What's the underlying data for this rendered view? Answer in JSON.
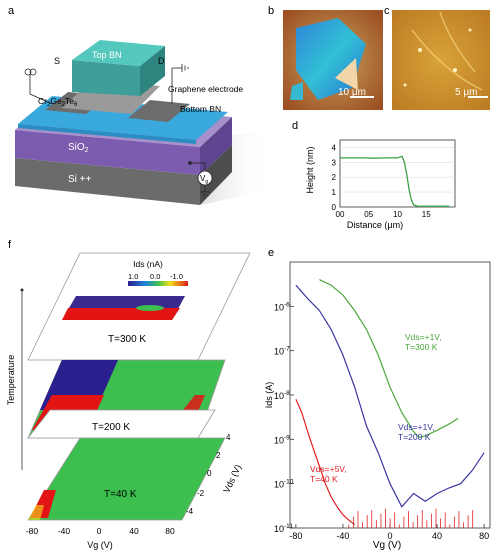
{
  "panels": {
    "a": {
      "label": "a",
      "source": "S",
      "drain": "D",
      "top_bn": "Top BN",
      "crgete_parts": [
        "Cr",
        "2",
        "Ge",
        "2",
        "Te",
        "6"
      ],
      "graphene": "Graphene electrode",
      "bottom_bn": "Bottom BN",
      "sio2_parts": [
        "SiO",
        "2"
      ],
      "si": "Si ++",
      "vg_parts": [
        "V",
        "g"
      ]
    },
    "b": {
      "label": "b",
      "scalebar": "10 μm"
    },
    "c": {
      "label": "c",
      "scalebar": "5 μm"
    },
    "d": {
      "label": "d"
    },
    "e": {
      "label": "e"
    },
    "f": {
      "label": "f",
      "y_axis": "Temperature",
      "colorbar_title": "Ids (nA)",
      "colorbar_ticks": [
        "1.0",
        "0.0",
        "-1.0"
      ],
      "temps": [
        "T=300 K",
        "T=200 K",
        "T=40 K"
      ],
      "vds_label": "Vds (V)",
      "vds_ticks": [
        "4",
        "2",
        "0",
        "-2",
        "-4"
      ],
      "vg_label": "Vg (V)",
      "vg_ticks": [
        "-80",
        "-40",
        "0",
        "40",
        "80"
      ]
    }
  },
  "chart_data": [
    {
      "panel": "d",
      "type": "line",
      "xlabel": "Distance (μm)",
      "ylabel": "Height (nm)",
      "xlim": [
        0,
        20
      ],
      "ylim": [
        0,
        4.5
      ],
      "xticks": [
        "00",
        "05",
        "10",
        "15"
      ],
      "yticks": [
        "0",
        "1",
        "2",
        "3",
        "4"
      ],
      "grid": true,
      "color": "#3aa043",
      "x": [
        0,
        2,
        4,
        6,
        8,
        10,
        10.8,
        11.2,
        11.6,
        12.0,
        12.4,
        12.8,
        13.5,
        15,
        17,
        19
      ],
      "y": [
        3.3,
        3.3,
        3.3,
        3.28,
        3.3,
        3.3,
        3.4,
        3.0,
        2.2,
        1.2,
        0.5,
        0.15,
        0.05,
        0.05,
        0.05,
        0.05
      ]
    },
    {
      "panel": "e",
      "type": "line",
      "xlabel": "Vg (V)",
      "ylabel": "Ids (A)",
      "yscale": "log",
      "xlim": [
        -85,
        85
      ],
      "ylim": [
        1e-11,
        1e-05
      ],
      "xticks": [
        -80,
        -40,
        0,
        40,
        80
      ],
      "yticks_base": "10",
      "yticks_exp": [
        "-6",
        "-7",
        "-8",
        "-9",
        "-10",
        "-11"
      ],
      "series": [
        {
          "label": [
            "Vds=+1V,",
            "T=300 K"
          ],
          "color": "#4ca83c",
          "x": [
            -60,
            -50,
            -40,
            -30,
            -20,
            -10,
            0,
            10,
            20,
            25,
            30,
            40,
            50,
            58
          ],
          "y": [
            4e-06,
            3e-06,
            1.8e-06,
            8e-07,
            3e-07,
            8e-08,
            1.5e-08,
            4e-09,
            1.5e-09,
            1.1e-09,
            1.2e-09,
            1.6e-09,
            2.2e-09,
            3e-09
          ]
        },
        {
          "label": [
            "Vds=+1V,",
            "T=200 K"
          ],
          "color": "#3a37a0",
          "x": [
            -80,
            -70,
            -60,
            -50,
            -40,
            -30,
            -20,
            -10,
            0,
            10,
            20,
            30,
            40,
            50,
            60,
            70,
            80
          ],
          "y": [
            3e-06,
            1.5e-06,
            8e-07,
            3e-07,
            8e-08,
            1.5e-08,
            2e-09,
            5e-10,
            1e-10,
            3e-11,
            6e-11,
            4e-11,
            6e-11,
            8e-11,
            1e-10,
            2e-10,
            5e-10
          ]
        },
        {
          "label": [
            "Vds=+5V,",
            "T=40 K"
          ],
          "color": "#e02020",
          "x": [
            -80,
            -75,
            -70,
            -65,
            -60,
            -55,
            -50,
            -45,
            -40,
            -35,
            -30
          ],
          "y": [
            8e-09,
            4e-09,
            1.5e-09,
            6e-10,
            2.5e-10,
            1e-10,
            5e-11,
            3e-11,
            2e-11,
            1.5e-11,
            1.2e-11
          ]
        }
      ]
    }
  ]
}
